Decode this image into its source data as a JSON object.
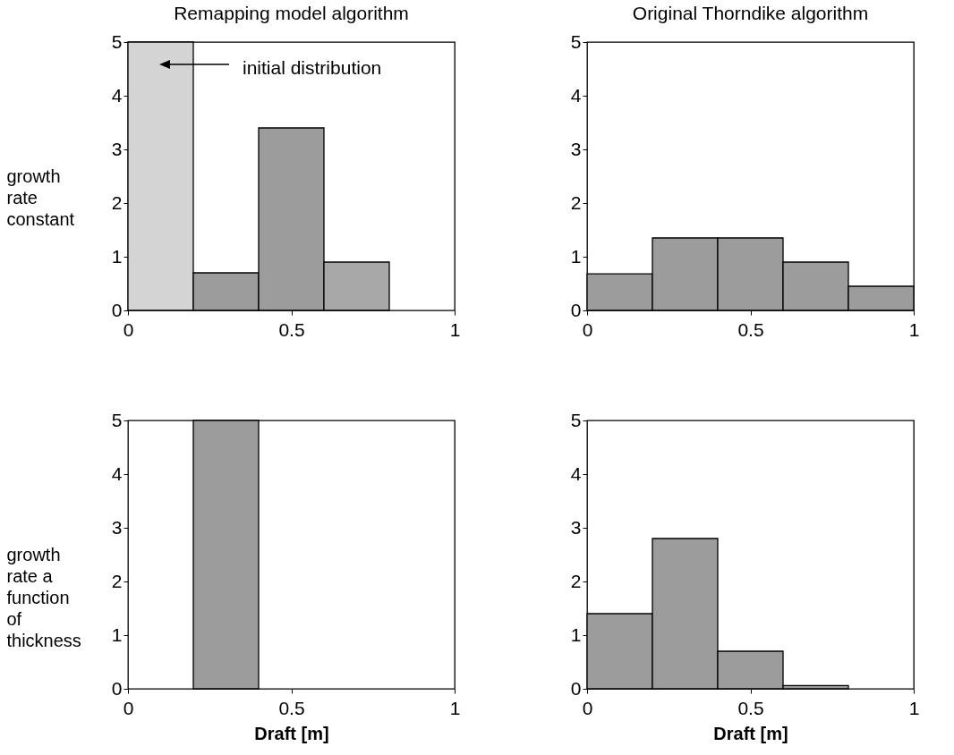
{
  "chart_data": [
    {
      "type": "histogram",
      "title": "Remapping model algorithm",
      "ylabel": "growth rate constant",
      "bins": [
        0,
        0.2,
        0.4,
        0.6,
        0.8,
        1
      ],
      "values": [
        5,
        0.7,
        3.4,
        0.9,
        0
      ],
      "colors": [
        "#d4d4d4",
        "#9c9c9c",
        "#9c9c9c",
        "#a8a8a8",
        "#9c9c9c"
      ],
      "xlim": [
        0,
        1
      ],
      "ylim": [
        0,
        5
      ],
      "xticks": [
        0,
        0.5,
        1
      ],
      "yticks": [
        0,
        1,
        2,
        3,
        4,
        5
      ],
      "annotations": [
        "initial distribution"
      ]
    },
    {
      "type": "histogram",
      "title": "Original Thorndike algorithm",
      "bins": [
        0,
        0.2,
        0.4,
        0.6,
        0.8,
        1
      ],
      "values": [
        0.68,
        1.35,
        1.35,
        0.9,
        0.45
      ],
      "color": "#9c9c9c",
      "xlim": [
        0,
        1
      ],
      "ylim": [
        0,
        5
      ],
      "xticks": [
        0,
        0.5,
        1
      ],
      "yticks": [
        0,
        1,
        2,
        3,
        4,
        5
      ]
    },
    {
      "type": "histogram",
      "ylabel": "growth rate a function of thickness",
      "xlabel": "Draft [m]",
      "bins": [
        0,
        0.2,
        0.4,
        0.6,
        0.8,
        1
      ],
      "values": [
        0,
        5,
        0,
        0,
        0
      ],
      "color": "#9c9c9c",
      "xlim": [
        0,
        1
      ],
      "ylim": [
        0,
        5
      ],
      "xticks": [
        0,
        0.5,
        1
      ],
      "yticks": [
        0,
        1,
        2,
        3,
        4,
        5
      ]
    },
    {
      "type": "histogram",
      "xlabel": "Draft [m]",
      "bins": [
        0,
        0.2,
        0.4,
        0.6,
        0.8,
        1
      ],
      "values": [
        1.4,
        2.8,
        0.7,
        0.06,
        0
      ],
      "color": "#9c9c9c",
      "xlim": [
        0,
        1
      ],
      "ylim": [
        0,
        5
      ],
      "xticks": [
        0,
        0.5,
        1
      ],
      "yticks": [
        0,
        1,
        2,
        3,
        4,
        5
      ]
    }
  ]
}
